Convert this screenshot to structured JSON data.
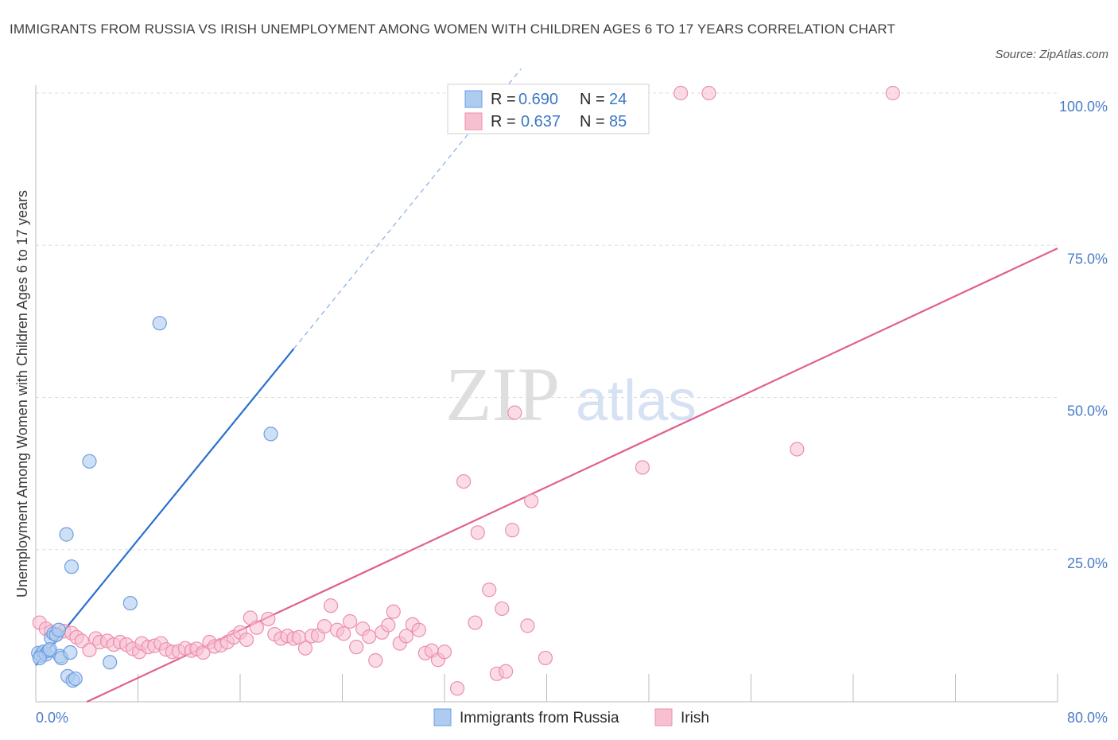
{
  "header": {
    "title": "IMMIGRANTS FROM RUSSIA VS IRISH UNEMPLOYMENT AMONG WOMEN WITH CHILDREN AGES 6 TO 17 YEARS CORRELATION CHART",
    "source": "Source: ZipAtlas.com"
  },
  "watermark": {
    "zip": "ZIP",
    "atlas": "atlas"
  },
  "legend": {
    "rows": [
      {
        "r_label": "R = ",
        "r_value": "0.690",
        "n_label": "N = ",
        "n_value": "24"
      },
      {
        "r_label": "R = ",
        "r_value": "0.637",
        "n_label": "N = ",
        "n_value": "85"
      }
    ]
  },
  "colors": {
    "russia_fill": "#aecbf0",
    "russia_stroke": "#6f9ee0",
    "russia_line": "#2a6fcf",
    "irish_fill": "#f7c0d1",
    "irish_stroke": "#ec8fab",
    "irish_line": "#e0608c",
    "grid": "#dddddd",
    "tick_text": "#4a7cc7"
  },
  "chart_data": {
    "type": "scatter",
    "title": "IMMIGRANTS FROM RUSSIA VS IRISH UNEMPLOYMENT AMONG WOMEN WITH CHILDREN AGES 6 TO 17 YEARS CORRELATION CHART",
    "xlabel": "",
    "ylabel": "Unemployment Among Women with Children Ages 6 to 17 years",
    "xlim": [
      0,
      80
    ],
    "ylim": [
      0,
      100
    ],
    "x_tick_labels": [
      "0.0%",
      "80.0%"
    ],
    "y_ticks": [
      25,
      50,
      75,
      100
    ],
    "y_tick_labels": [
      "25.0%",
      "50.0%",
      "75.0%",
      "100.0%"
    ],
    "grid": true,
    "legend_position": "bottom-center",
    "series": [
      {
        "name": "Immigrants from Russia",
        "R": 0.69,
        "N": 24,
        "points": [
          [
            0.2,
            8.0
          ],
          [
            0.4,
            7.6
          ],
          [
            0.6,
            8.2
          ],
          [
            0.8,
            7.8
          ],
          [
            1.0,
            8.4
          ],
          [
            1.2,
            10.5
          ],
          [
            1.4,
            11.2
          ],
          [
            1.6,
            11.0
          ],
          [
            1.8,
            11.8
          ],
          [
            1.9,
            7.5
          ],
          [
            2.0,
            7.2
          ],
          [
            2.4,
            27.5
          ],
          [
            2.5,
            4.2
          ],
          [
            2.7,
            8.1
          ],
          [
            2.8,
            22.2
          ],
          [
            2.9,
            3.5
          ],
          [
            3.1,
            3.8
          ],
          [
            4.2,
            39.5
          ],
          [
            5.8,
            6.5
          ],
          [
            7.4,
            16.2
          ],
          [
            9.7,
            62.2
          ],
          [
            18.4,
            44.0
          ],
          [
            0.3,
            7.2
          ],
          [
            1.1,
            8.6
          ]
        ],
        "trend": {
          "x1": 0.0,
          "y1": 6.0,
          "x2": 20.2,
          "y2": 58.0,
          "dash_x2": 38.0,
          "dash_y2": 104.0
        }
      },
      {
        "name": "Irish",
        "R": 0.637,
        "N": 85,
        "points": [
          [
            0.3,
            13.0
          ],
          [
            0.8,
            12.0
          ],
          [
            1.2,
            11.5
          ],
          [
            1.6,
            11.0
          ],
          [
            2.2,
            11.6
          ],
          [
            2.8,
            11.3
          ],
          [
            3.2,
            10.6
          ],
          [
            3.6,
            10.0
          ],
          [
            4.2,
            8.5
          ],
          [
            4.7,
            10.4
          ],
          [
            5.0,
            9.8
          ],
          [
            5.6,
            10.0
          ],
          [
            6.1,
            9.4
          ],
          [
            6.6,
            9.8
          ],
          [
            7.1,
            9.4
          ],
          [
            7.6,
            8.7
          ],
          [
            8.1,
            8.2
          ],
          [
            8.3,
            9.6
          ],
          [
            8.8,
            9.0
          ],
          [
            9.3,
            9.2
          ],
          [
            9.8,
            9.6
          ],
          [
            10.2,
            8.6
          ],
          [
            10.7,
            8.2
          ],
          [
            11.2,
            8.3
          ],
          [
            11.7,
            8.8
          ],
          [
            12.2,
            8.4
          ],
          [
            12.6,
            8.7
          ],
          [
            13.1,
            8.1
          ],
          [
            13.6,
            9.8
          ],
          [
            14.0,
            9.1
          ],
          [
            14.5,
            9.3
          ],
          [
            15.0,
            9.8
          ],
          [
            15.5,
            10.6
          ],
          [
            16.0,
            11.4
          ],
          [
            16.5,
            10.2
          ],
          [
            16.8,
            13.8
          ],
          [
            17.3,
            12.2
          ],
          [
            18.2,
            13.6
          ],
          [
            18.7,
            11.1
          ],
          [
            19.2,
            10.4
          ],
          [
            19.7,
            10.8
          ],
          [
            20.2,
            10.4
          ],
          [
            20.6,
            10.6
          ],
          [
            21.1,
            8.8
          ],
          [
            21.6,
            10.8
          ],
          [
            22.1,
            10.9
          ],
          [
            22.6,
            12.4
          ],
          [
            23.1,
            15.8
          ],
          [
            23.6,
            11.8
          ],
          [
            24.1,
            11.2
          ],
          [
            24.6,
            13.2
          ],
          [
            25.1,
            9.0
          ],
          [
            25.6,
            12.0
          ],
          [
            26.1,
            10.7
          ],
          [
            26.6,
            6.8
          ],
          [
            27.1,
            11.4
          ],
          [
            27.6,
            12.6
          ],
          [
            28.0,
            14.8
          ],
          [
            28.5,
            9.6
          ],
          [
            29.0,
            10.8
          ],
          [
            29.5,
            12.7
          ],
          [
            30.0,
            11.8
          ],
          [
            30.5,
            8.0
          ],
          [
            31.0,
            8.4
          ],
          [
            31.5,
            6.9
          ],
          [
            32.0,
            8.2
          ],
          [
            33.5,
            36.2
          ],
          [
            33.0,
            2.2
          ],
          [
            34.4,
            13.0
          ],
          [
            34.6,
            27.8
          ],
          [
            35.5,
            18.4
          ],
          [
            36.1,
            4.6
          ],
          [
            36.5,
            15.3
          ],
          [
            36.8,
            5.0
          ],
          [
            37.3,
            28.2
          ],
          [
            37.5,
            47.5
          ],
          [
            38.5,
            12.5
          ],
          [
            38.8,
            33.0
          ],
          [
            39.9,
            7.2
          ],
          [
            44.5,
            100.0
          ],
          [
            47.5,
            38.5
          ],
          [
            50.5,
            100.0
          ],
          [
            52.7,
            100.0
          ],
          [
            59.6,
            41.5
          ],
          [
            67.1,
            100.0
          ]
        ],
        "trend": {
          "x1": 4.0,
          "y1": 0.0,
          "x2": 80.0,
          "y2": 74.5
        }
      }
    ]
  }
}
